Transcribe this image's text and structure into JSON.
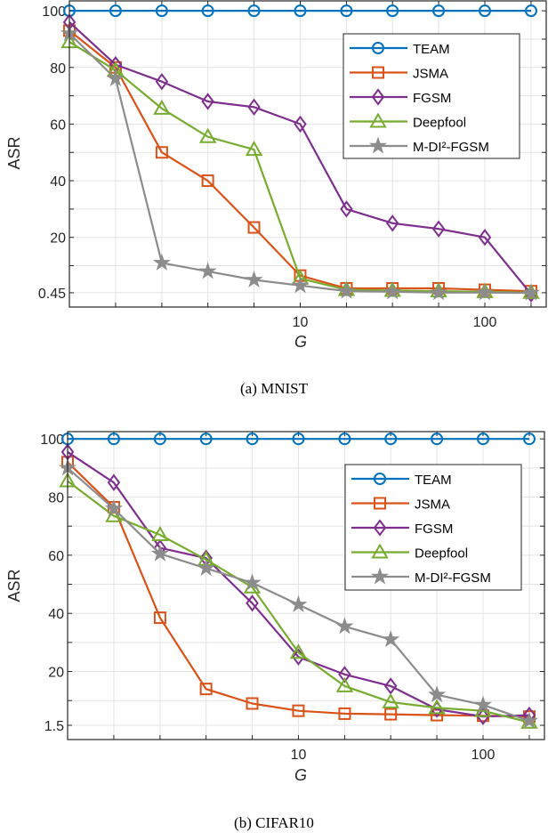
{
  "chart_data": [
    {
      "type": "line",
      "caption": "(a)  MNIST",
      "xlabel": "G",
      "ylabel": "ASR",
      "xscale": "log",
      "x": [
        0.562,
        1,
        1.78,
        3.16,
        5.62,
        10,
        17.8,
        31.6,
        56.2,
        100,
        178
      ],
      "xlim": [
        0.562,
        215
      ],
      "xticks": [
        10,
        100
      ],
      "xtick_labels": [
        "10",
        "100"
      ],
      "ylim": [
        -4.6,
        103.5
      ],
      "yticks": [
        0.45,
        20,
        40,
        60,
        80,
        100
      ],
      "ytick_labels": [
        "0.45",
        "20",
        "40",
        "60",
        "80",
        "100"
      ],
      "ygrid_extra": [
        10,
        30,
        50,
        70,
        90
      ],
      "grid": true,
      "legend_position": "top-right",
      "series": [
        {
          "name": "TEAM",
          "color": "#0072BD",
          "marker": "circle",
          "values": [
            100,
            100,
            100,
            100,
            100,
            100,
            100,
            100,
            100,
            100,
            100
          ]
        },
        {
          "name": "JSMA",
          "color": "#D95319",
          "marker": "square",
          "values": [
            93,
            80,
            50,
            40,
            23.5,
            6.5,
            2,
            2,
            2,
            1.5,
            1
          ]
        },
        {
          "name": "FGSM",
          "color": "#7E2F8E",
          "marker": "diamond",
          "values": [
            96,
            81,
            75,
            68,
            66,
            60,
            30,
            25,
            23,
            20,
            0
          ]
        },
        {
          "name": "Deepfool",
          "color": "#77AC30",
          "marker": "triangle",
          "values": [
            89,
            79,
            65.5,
            55.5,
            51,
            5.5,
            1.5,
            1.2,
            1,
            0.8,
            0.5
          ]
        },
        {
          "name": "M-DI²-FGSM",
          "color": "#8C8C8C",
          "marker": "star",
          "values": [
            92,
            76,
            11,
            8,
            5,
            3,
            1,
            0.8,
            0.5,
            0.5,
            0.4
          ]
        }
      ]
    },
    {
      "type": "line",
      "caption": "(b)  CIFAR10",
      "xlabel": "G",
      "ylabel": "ASR",
      "xscale": "log",
      "x": [
        0.562,
        1,
        1.78,
        3.16,
        5.62,
        10,
        17.8,
        31.6,
        56.2,
        100,
        178
      ],
      "xlim": [
        0.562,
        215
      ],
      "xticks": [
        10,
        100
      ],
      "xtick_labels": [
        "10",
        "100"
      ],
      "ylim": [
        -3.4,
        102.5
      ],
      "yticks": [
        1.5,
        20,
        40,
        60,
        80,
        100
      ],
      "ytick_labels": [
        "1.5",
        "20",
        "40",
        "60",
        "80",
        "100"
      ],
      "ygrid_extra": [
        10,
        30,
        50,
        70,
        90
      ],
      "grid": true,
      "legend_position": "top-right",
      "series": [
        {
          "name": "TEAM",
          "color": "#0072BD",
          "marker": "circle",
          "values": [
            100,
            100,
            100,
            100,
            100,
            100,
            100,
            100,
            100,
            100,
            100
          ]
        },
        {
          "name": "JSMA",
          "color": "#D95319",
          "marker": "square",
          "values": [
            92,
            76.5,
            38.5,
            14,
            9,
            6.5,
            5.5,
            5.3,
            5,
            4.8,
            4.5
          ]
        },
        {
          "name": "FGSM",
          "color": "#7E2F8E",
          "marker": "diamond",
          "values": [
            95.5,
            85,
            62.5,
            59,
            43.5,
            25,
            19,
            15,
            7,
            4.5,
            5
          ]
        },
        {
          "name": "Deepfool",
          "color": "#77AC30",
          "marker": "triangle",
          "values": [
            85.5,
            73.5,
            67,
            58.5,
            49,
            26.5,
            15,
            9.5,
            7.5,
            6.5,
            2.5
          ]
        },
        {
          "name": "M-DI²-FGSM",
          "color": "#8C8C8C",
          "marker": "star",
          "values": [
            90,
            76,
            60.5,
            55.5,
            50.5,
            43,
            35.5,
            31,
            12,
            8.5,
            3
          ]
        }
      ]
    }
  ]
}
